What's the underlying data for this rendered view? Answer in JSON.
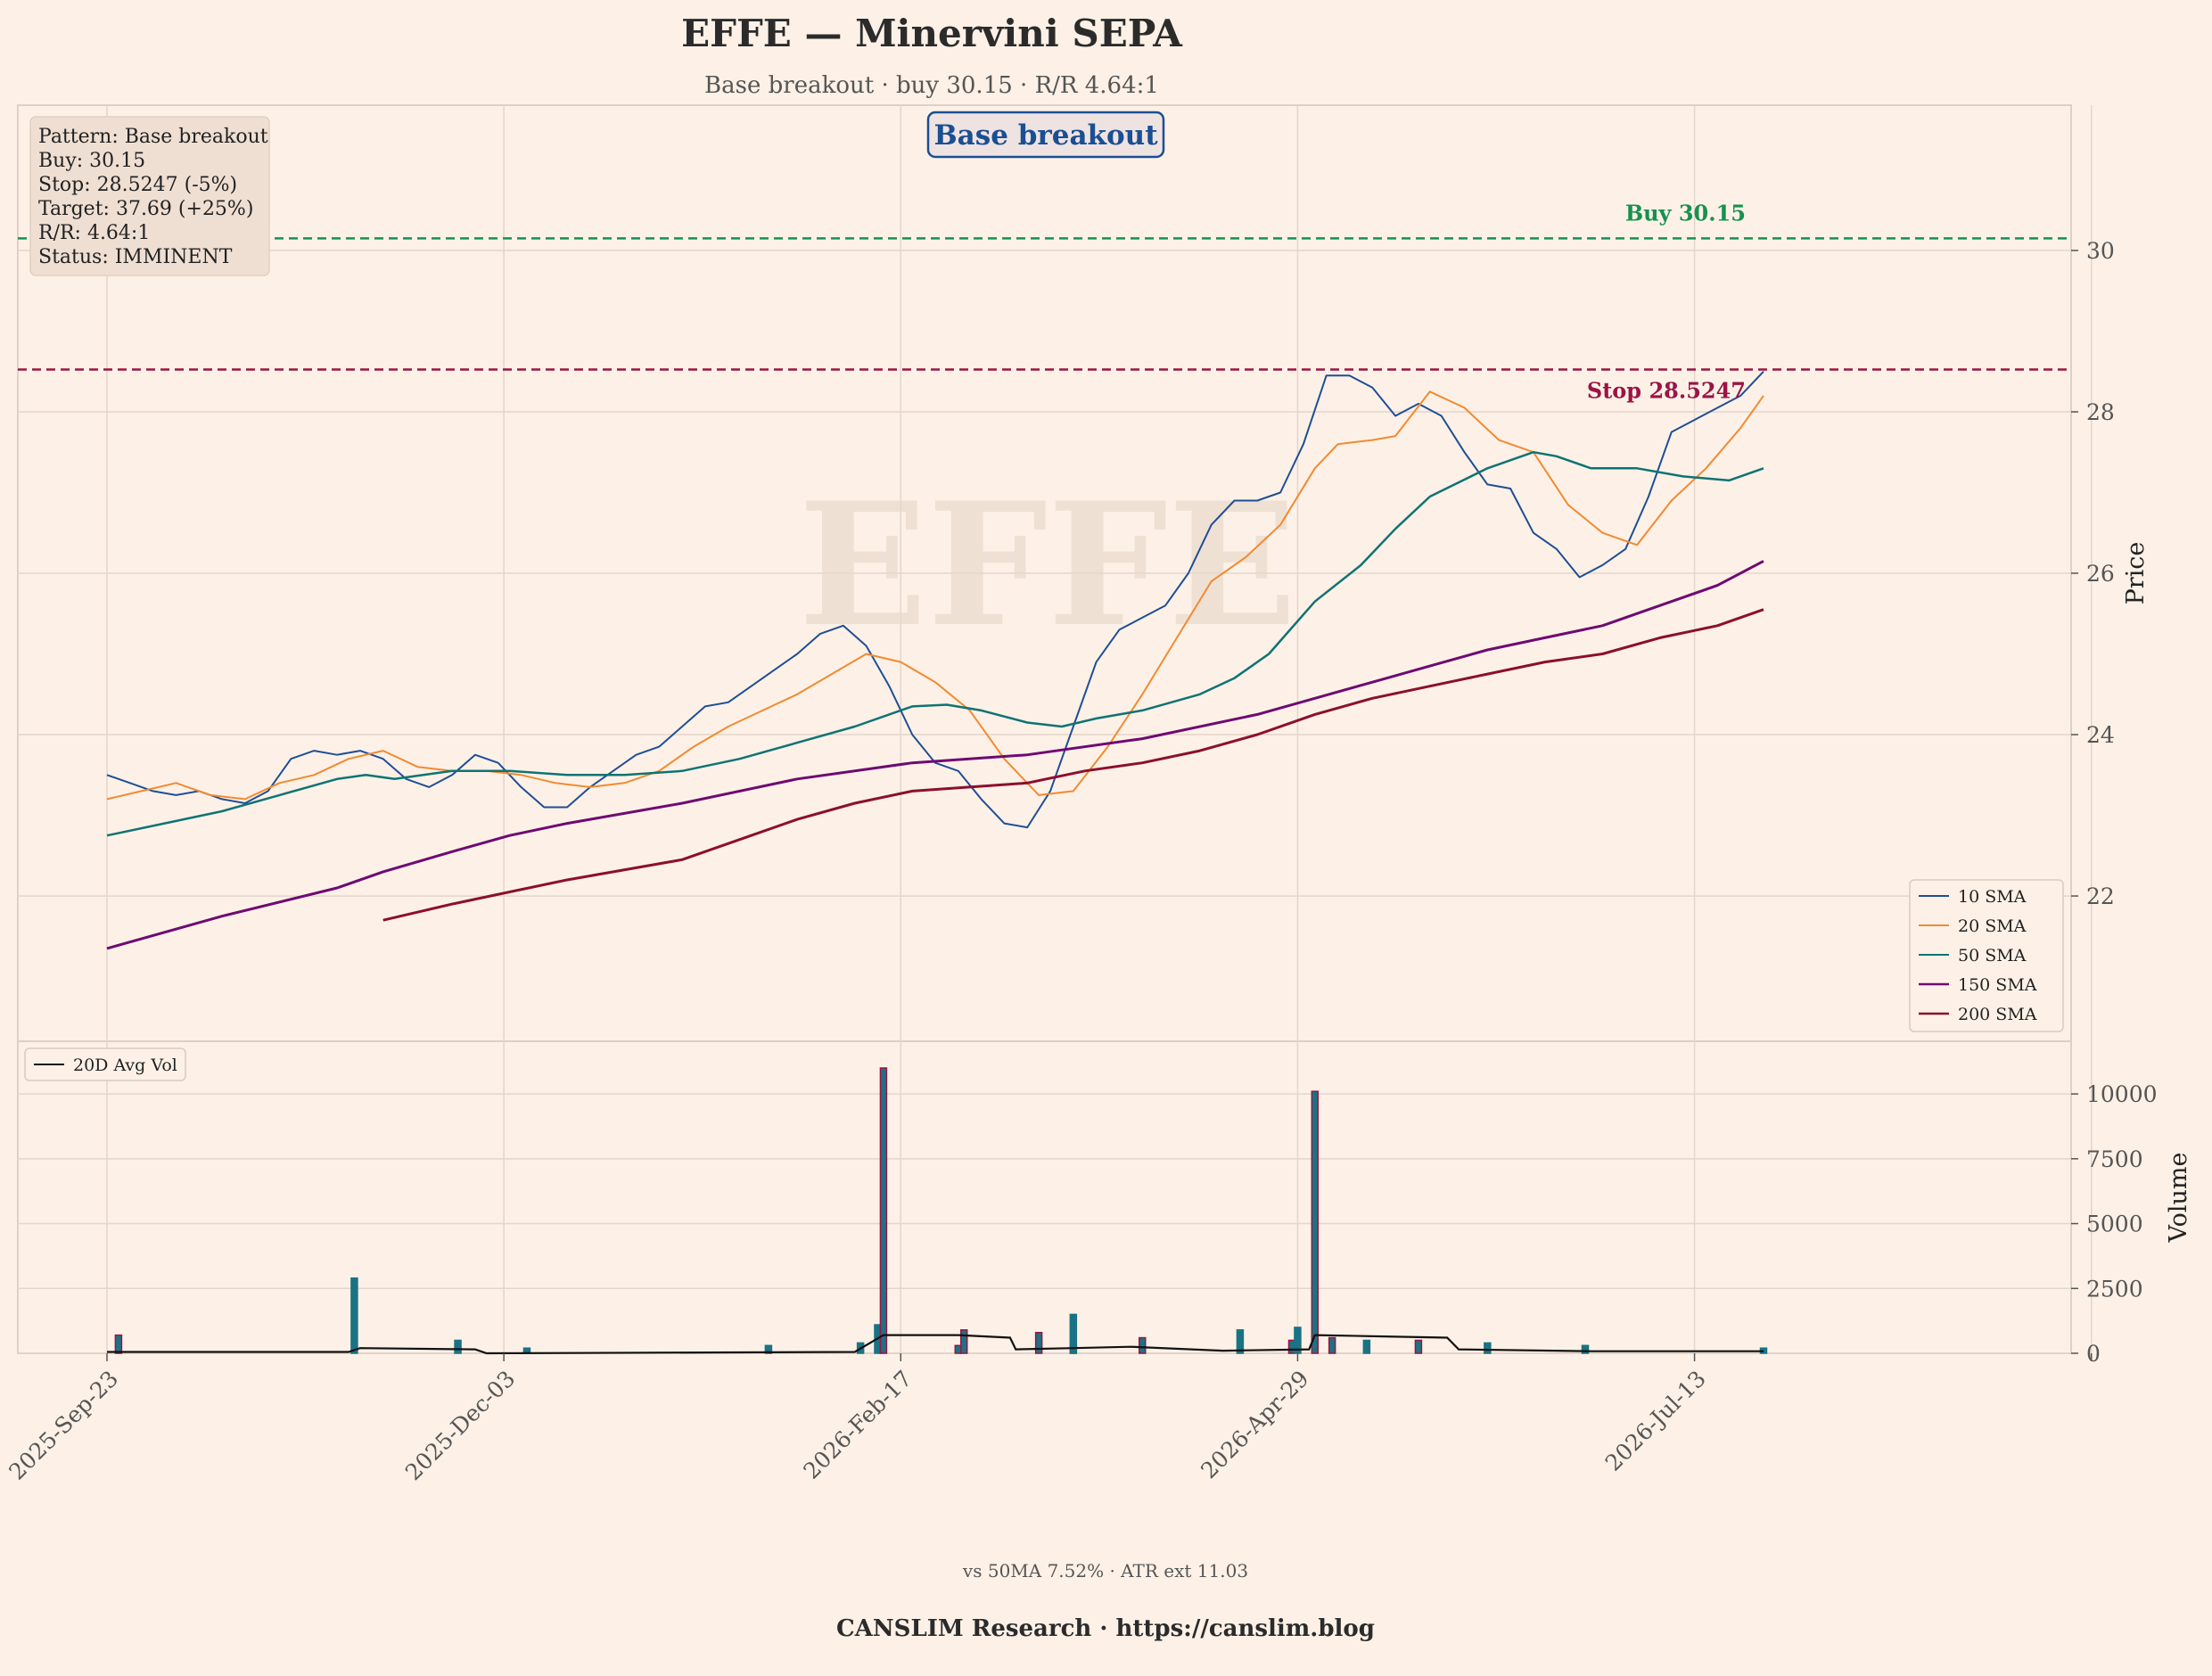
{
  "header": {
    "title": "EFFE — Minervini SEPA",
    "subtitle": "Base breakout · buy 30.15 · R/R 4.64:1"
  },
  "watermark": "EFFE",
  "pattern_badge": "Base breakout",
  "info_box": [
    "Pattern: Base breakout",
    "Buy: 30.15",
    "Stop: 28.5247 (-5%)",
    "Target: 37.69 (+25%)",
    "R/R: 4.64:1",
    "Status: IMMINENT"
  ],
  "levels": {
    "buy_label": "Buy 30.15",
    "stop_label": "Stop 28.5247"
  },
  "axes": {
    "price_label": "Price",
    "volume_label": "Volume",
    "x_ticks": [
      "2025-Sep-23",
      "2025-Dec-03",
      "2026-Feb-17",
      "2026-Apr-29",
      "2026-Jul-13"
    ],
    "price_ticks": [
      "22",
      "24",
      "26",
      "28",
      "30"
    ],
    "volume_ticks": [
      "0",
      "2500",
      "5000",
      "7500",
      "10000"
    ]
  },
  "legend": {
    "price": [
      "10 SMA",
      "20 SMA",
      "50 SMA",
      "150 SMA",
      "200 SMA"
    ],
    "volume": [
      "20D Avg Vol"
    ]
  },
  "footer": {
    "stats": "vs 50MA 7.52% · ATR ext 11.03",
    "brand": "CANSLIM Research  ·  https://canslim.blog"
  },
  "colors": {
    "background": "#fdf1e7",
    "up": "#1a7384",
    "down": "#9b1444",
    "sma10": "#1f4e96",
    "sma20": "#f28a30",
    "sma50": "#0f7373",
    "sma150": "#6e0a73",
    "sma200": "#8c0f2e",
    "buy": "#17914f",
    "stop": "#9b1444"
  },
  "chart_data": [
    {
      "type": "line",
      "title": "EFFE — Minervini SEPA",
      "ylabel": "Price",
      "ylim": [
        20.2,
        31.8
      ],
      "x_axis": "trading days, 2025-Sep-23 to 2026-Sep-05",
      "x_ticks": [
        "2025-Sep-23",
        "2025-Dec-03",
        "2026-Feb-17",
        "2026-Apr-29",
        "2026-Jul-13"
      ],
      "hlines": [
        {
          "name": "Buy 30.15",
          "value": 30.15
        },
        {
          "name": "Stop 28.5247",
          "value": 28.5247
        }
      ],
      "series": [
        {
          "name": "10 SMA",
          "points": [
            [
              0,
              23.5
            ],
            [
              4,
              23.4
            ],
            [
              8,
              23.3
            ],
            [
              12,
              23.25
            ],
            [
              16,
              23.3
            ],
            [
              20,
              23.2
            ],
            [
              24,
              23.15
            ],
            [
              28,
              23.3
            ],
            [
              32,
              23.7
            ],
            [
              36,
              23.8
            ],
            [
              40,
              23.75
            ],
            [
              44,
              23.8
            ],
            [
              48,
              23.7
            ],
            [
              52,
              23.45
            ],
            [
              56,
              23.35
            ],
            [
              60,
              23.5
            ],
            [
              64,
              23.75
            ],
            [
              68,
              23.65
            ],
            [
              72,
              23.35
            ],
            [
              76,
              23.1
            ],
            [
              80,
              23.1
            ],
            [
              84,
              23.35
            ],
            [
              88,
              23.55
            ],
            [
              92,
              23.75
            ],
            [
              96,
              23.85
            ],
            [
              100,
              24.1
            ],
            [
              104,
              24.35
            ],
            [
              108,
              24.4
            ],
            [
              112,
              24.6
            ],
            [
              116,
              24.8
            ],
            [
              120,
              25.0
            ],
            [
              124,
              25.25
            ],
            [
              128,
              25.35
            ],
            [
              132,
              25.1
            ],
            [
              136,
              24.6
            ],
            [
              140,
              24.0
            ],
            [
              144,
              23.65
            ],
            [
              148,
              23.55
            ],
            [
              152,
              23.2
            ],
            [
              156,
              22.9
            ],
            [
              160,
              22.85
            ],
            [
              164,
              23.3
            ],
            [
              168,
              24.1
            ],
            [
              172,
              24.9
            ],
            [
              176,
              25.3
            ],
            [
              180,
              25.45
            ],
            [
              184,
              25.6
            ],
            [
              188,
              26.0
            ],
            [
              192,
              26.6
            ],
            [
              196,
              26.9
            ],
            [
              200,
              26.9
            ],
            [
              204,
              27.0
            ],
            [
              208,
              27.6
            ],
            [
              212,
              28.45
            ],
            [
              216,
              28.45
            ],
            [
              220,
              28.3
            ],
            [
              224,
              27.95
            ],
            [
              228,
              28.1
            ],
            [
              232,
              27.95
            ],
            [
              236,
              27.5
            ],
            [
              240,
              27.1
            ],
            [
              244,
              27.05
            ],
            [
              248,
              26.5
            ],
            [
              252,
              26.3
            ],
            [
              256,
              25.95
            ],
            [
              260,
              26.1
            ],
            [
              264,
              26.3
            ],
            [
              268,
              26.95
            ],
            [
              272,
              27.75
            ],
            [
              276,
              27.9
            ],
            [
              280,
              28.05
            ],
            [
              284,
              28.2
            ],
            [
              288,
              28.5
            ]
          ]
        },
        {
          "name": "20 SMA",
          "points": [
            [
              0,
              23.2
            ],
            [
              6,
              23.3
            ],
            [
              12,
              23.4
            ],
            [
              18,
              23.25
            ],
            [
              24,
              23.2
            ],
            [
              30,
              23.4
            ],
            [
              36,
              23.5
            ],
            [
              42,
              23.7
            ],
            [
              48,
              23.8
            ],
            [
              54,
              23.6
            ],
            [
              60,
              23.55
            ],
            [
              66,
              23.55
            ],
            [
              72,
              23.5
            ],
            [
              78,
              23.4
            ],
            [
              84,
              23.35
            ],
            [
              90,
              23.4
            ],
            [
              96,
              23.55
            ],
            [
              102,
              23.85
            ],
            [
              108,
              24.1
            ],
            [
              114,
              24.3
            ],
            [
              120,
              24.5
            ],
            [
              126,
              24.75
            ],
            [
              132,
              25.0
            ],
            [
              138,
              24.9
            ],
            [
              144,
              24.65
            ],
            [
              150,
              24.3
            ],
            [
              156,
              23.7
            ],
            [
              162,
              23.25
            ],
            [
              168,
              23.3
            ],
            [
              174,
              23.85
            ],
            [
              180,
              24.5
            ],
            [
              186,
              25.2
            ],
            [
              192,
              25.9
            ],
            [
              198,
              26.2
            ],
            [
              204,
              26.6
            ],
            [
              210,
              27.3
            ],
            [
              214,
              27.6
            ],
            [
              220,
              27.65
            ],
            [
              224,
              27.7
            ],
            [
              230,
              28.25
            ],
            [
              236,
              28.05
            ],
            [
              242,
              27.65
            ],
            [
              248,
              27.5
            ],
            [
              254,
              26.85
            ],
            [
              260,
              26.5
            ],
            [
              266,
              26.35
            ],
            [
              272,
              26.9
            ],
            [
              278,
              27.3
            ],
            [
              284,
              27.8
            ],
            [
              288,
              28.2
            ]
          ]
        },
        {
          "name": "50 SMA",
          "points": [
            [
              0,
              22.75
            ],
            [
              10,
              22.9
            ],
            [
              20,
              23.05
            ],
            [
              30,
              23.25
            ],
            [
              40,
              23.45
            ],
            [
              45,
              23.5
            ],
            [
              50,
              23.45
            ],
            [
              60,
              23.55
            ],
            [
              70,
              23.55
            ],
            [
              80,
              23.5
            ],
            [
              90,
              23.5
            ],
            [
              100,
              23.55
            ],
            [
              110,
              23.7
            ],
            [
              120,
              23.9
            ],
            [
              130,
              24.1
            ],
            [
              136,
              24.25
            ],
            [
              140,
              24.35
            ],
            [
              146,
              24.37
            ],
            [
              152,
              24.3
            ],
            [
              160,
              24.15
            ],
            [
              166,
              24.1
            ],
            [
              172,
              24.2
            ],
            [
              180,
              24.3
            ],
            [
              190,
              24.5
            ],
            [
              196,
              24.7
            ],
            [
              202,
              25.0
            ],
            [
              210,
              25.65
            ],
            [
              218,
              26.1
            ],
            [
              224,
              26.55
            ],
            [
              230,
              26.95
            ],
            [
              240,
              27.3
            ],
            [
              248,
              27.5
            ],
            [
              252,
              27.45
            ],
            [
              258,
              27.3
            ],
            [
              266,
              27.3
            ],
            [
              274,
              27.2
            ],
            [
              282,
              27.15
            ],
            [
              288,
              27.3
            ]
          ]
        },
        {
          "name": "150 SMA",
          "points": [
            [
              0,
              21.35
            ],
            [
              20,
              21.75
            ],
            [
              40,
              22.1
            ],
            [
              48,
              22.3
            ],
            [
              60,
              22.55
            ],
            [
              70,
              22.75
            ],
            [
              80,
              22.9
            ],
            [
              100,
              23.15
            ],
            [
              120,
              23.45
            ],
            [
              140,
              23.65
            ],
            [
              160,
              23.75
            ],
            [
              180,
              23.95
            ],
            [
              200,
              24.25
            ],
            [
              210,
              24.45
            ],
            [
              220,
              24.65
            ],
            [
              230,
              24.85
            ],
            [
              240,
              25.05
            ],
            [
              250,
              25.2
            ],
            [
              260,
              25.35
            ],
            [
              270,
              25.6
            ],
            [
              280,
              25.85
            ],
            [
              288,
              26.15
            ]
          ]
        },
        {
          "name": "200 SMA",
          "points": [
            [
              48,
              21.7
            ],
            [
              60,
              21.9
            ],
            [
              70,
              22.05
            ],
            [
              80,
              22.2
            ],
            [
              100,
              22.45
            ],
            [
              110,
              22.7
            ],
            [
              120,
              22.95
            ],
            [
              130,
              23.15
            ],
            [
              140,
              23.3
            ],
            [
              160,
              23.4
            ],
            [
              170,
              23.55
            ],
            [
              180,
              23.65
            ],
            [
              190,
              23.8
            ],
            [
              200,
              24.0
            ],
            [
              210,
              24.25
            ],
            [
              220,
              24.45
            ],
            [
              230,
              24.6
            ],
            [
              240,
              24.75
            ],
            [
              250,
              24.9
            ],
            [
              260,
              25.0
            ],
            [
              270,
              25.2
            ],
            [
              280,
              25.35
            ],
            [
              288,
              25.55
            ]
          ]
        }
      ]
    },
    {
      "type": "bar",
      "ylabel": "Volume",
      "ylim": [
        0,
        11000
      ],
      "bars": [
        {
          "day": 2,
          "volume": 700,
          "dir": "down"
        },
        {
          "day": 43,
          "volume": 2900,
          "dir": "up"
        },
        {
          "day": 61,
          "volume": 500,
          "dir": "up"
        },
        {
          "day": 73,
          "volume": 200,
          "dir": "up"
        },
        {
          "day": 115,
          "volume": 300,
          "dir": "up"
        },
        {
          "day": 131,
          "volume": 400,
          "dir": "up"
        },
        {
          "day": 134,
          "volume": 1100,
          "dir": "up"
        },
        {
          "day": 135,
          "volume": 11000,
          "dir": "down"
        },
        {
          "day": 148,
          "volume": 300,
          "dir": "down"
        },
        {
          "day": 149,
          "volume": 900,
          "dir": "down"
        },
        {
          "day": 162,
          "volume": 800,
          "dir": "down"
        },
        {
          "day": 168,
          "volume": 300,
          "dir": "up"
        },
        {
          "day": 168,
          "volume": 1500,
          "dir": "up"
        },
        {
          "day": 180,
          "volume": 600,
          "dir": "down"
        },
        {
          "day": 197,
          "volume": 900,
          "dir": "up"
        },
        {
          "day": 206,
          "volume": 500,
          "dir": "down"
        },
        {
          "day": 207,
          "volume": 1000,
          "dir": "up"
        },
        {
          "day": 210,
          "volume": 10100,
          "dir": "down"
        },
        {
          "day": 213,
          "volume": 600,
          "dir": "down"
        },
        {
          "day": 219,
          "volume": 500,
          "dir": "up"
        },
        {
          "day": 228,
          "volume": 500,
          "dir": "down"
        },
        {
          "day": 240,
          "volume": 400,
          "dir": "up"
        },
        {
          "day": 257,
          "volume": 300,
          "dir": "up"
        },
        {
          "day": 288,
          "volume": 200,
          "dir": "up"
        }
      ],
      "series": [
        {
          "name": "20D Avg Vol",
          "points": [
            [
              0,
              50
            ],
            [
              42,
              50
            ],
            [
              44,
              200
            ],
            [
              64,
              150
            ],
            [
              66,
              0
            ],
            [
              130,
              50
            ],
            [
              135,
              700
            ],
            [
              148,
              700
            ],
            [
              157,
              600
            ],
            [
              158,
              150
            ],
            [
              168,
              200
            ],
            [
              178,
              250
            ],
            [
              194,
              100
            ],
            [
              209,
              150
            ],
            [
              210,
              700
            ],
            [
              222,
              650
            ],
            [
              233,
              600
            ],
            [
              235,
              150
            ],
            [
              258,
              80
            ],
            [
              288,
              80
            ]
          ]
        }
      ]
    }
  ]
}
